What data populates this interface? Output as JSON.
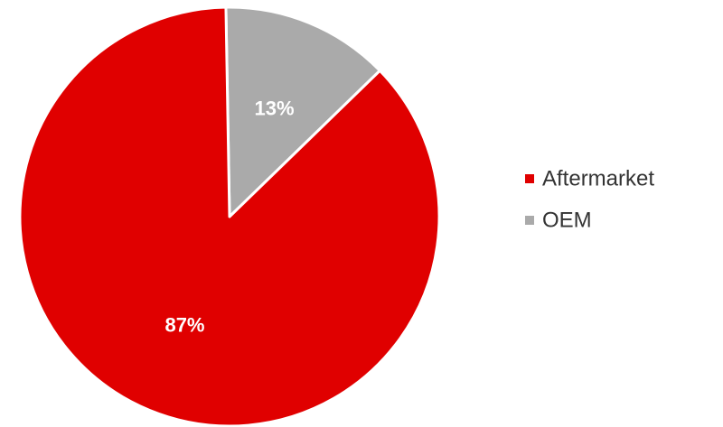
{
  "chart_data": {
    "type": "pie",
    "categories": [
      "Aftermarket",
      "OEM"
    ],
    "values": [
      87,
      13
    ],
    "colors": [
      "#e00000",
      "#aaaaaa"
    ],
    "data_labels": [
      "87%",
      "13%"
    ],
    "legend": {
      "position": "right",
      "entries": [
        "Aftermarket",
        "OEM"
      ]
    },
    "start_angle_deg": -1,
    "direction": "clockwise-oem-first"
  }
}
